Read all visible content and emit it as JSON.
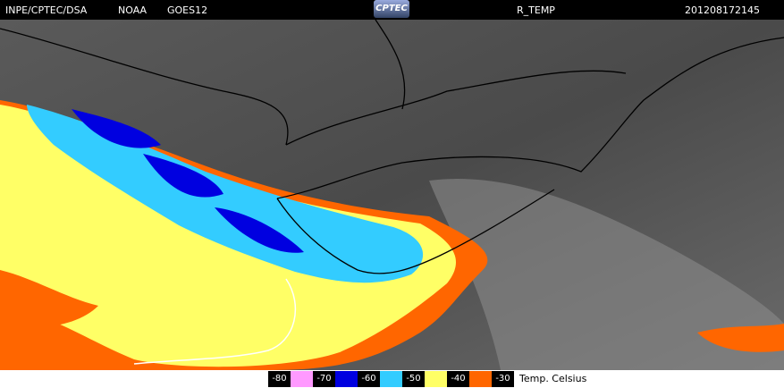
{
  "header": {
    "institution": "INPE/CPTEC/DSA",
    "agency": "NOAA",
    "satellite": "GOES12",
    "logo": "CPTEC",
    "product": "R_TEMP",
    "timestamp": "201208172145"
  },
  "legend": {
    "items": [
      {
        "value": -80,
        "color": "#ff99ff"
      },
      {
        "value": -70,
        "color": "#0000e0"
      },
      {
        "value": -60,
        "color": "#33ccff"
      },
      {
        "value": -50,
        "color": "#ffff66"
      },
      {
        "value": -40,
        "color": "#ff6600"
      },
      {
        "value": -30
      }
    ],
    "unit": "Temp. Celsius"
  }
}
